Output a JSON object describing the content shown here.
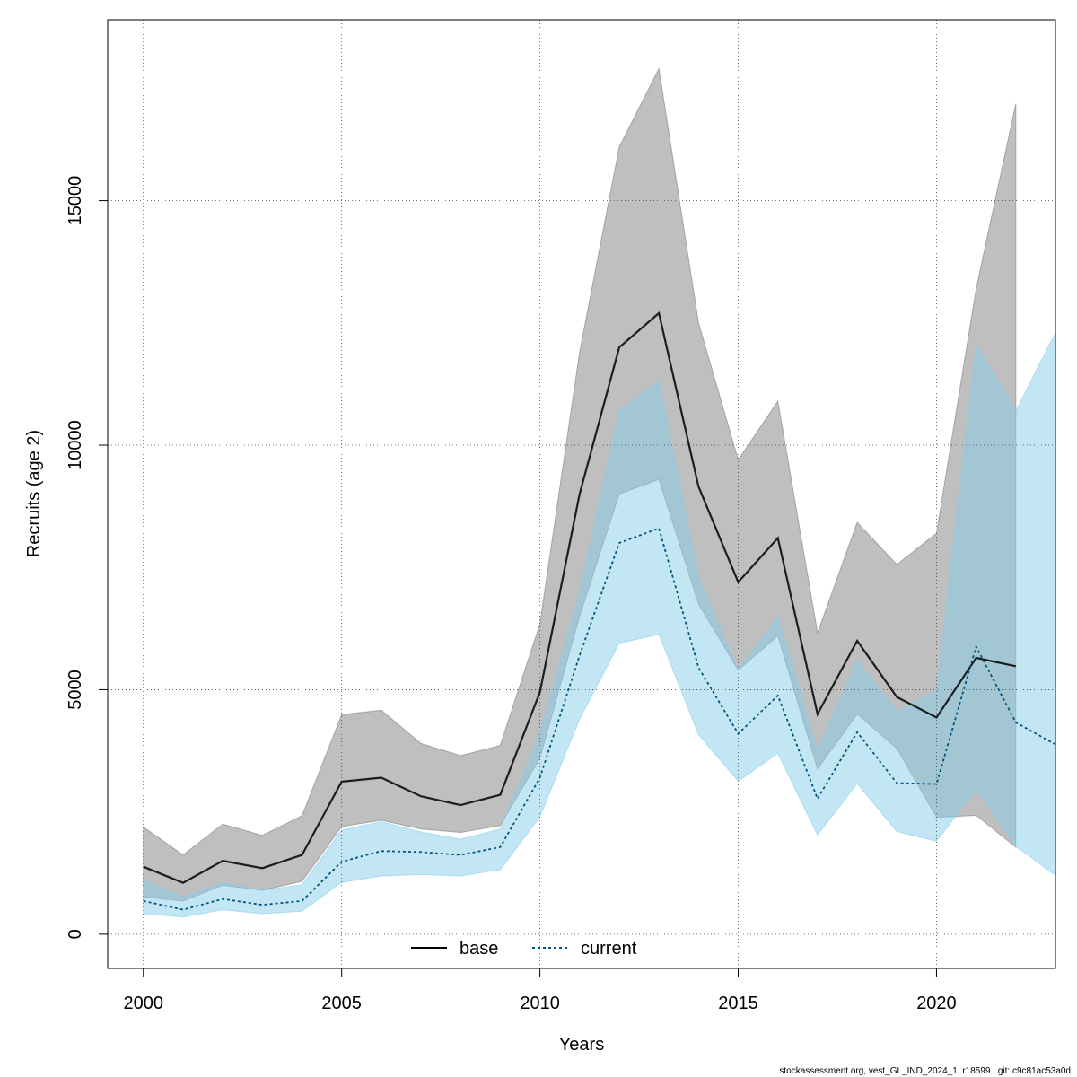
{
  "chart_data": {
    "type": "line",
    "xlabel": "Years",
    "ylabel": "Recruits (age 2)",
    "xlim": [
      1999.1,
      2023
    ],
    "ylim": [
      -700,
      18700
    ],
    "x_ticks": [
      2000,
      2005,
      2010,
      2015,
      2020
    ],
    "y_ticks": [
      0,
      5000,
      10000,
      15000
    ],
    "grid": true,
    "legend_position": "bottom",
    "series": [
      {
        "name": "base",
        "color": "#000000",
        "band_color": "#808080",
        "line_style": "solid",
        "x": [
          2000,
          2001,
          2002,
          2003,
          2004,
          2005,
          2006,
          2007,
          2008,
          2009,
          2010,
          2011,
          2012,
          2013,
          2014,
          2015,
          2016,
          2017,
          2018,
          2019,
          2020,
          2021,
          2022
        ],
        "values": [
          1380,
          1050,
          1500,
          1350,
          1620,
          3120,
          3200,
          2820,
          2640,
          2850,
          4950,
          9000,
          12000,
          12700,
          9150,
          7200,
          8100,
          4500,
          6000,
          4850,
          4430,
          5650,
          5480
        ],
        "lower": [
          760,
          680,
          1000,
          900,
          1080,
          2200,
          2330,
          2150,
          2080,
          2220,
          3600,
          6500,
          9000,
          9300,
          6750,
          5400,
          6100,
          3380,
          4500,
          3800,
          2390,
          2430,
          1780
        ],
        "upper": [
          2190,
          1620,
          2250,
          2020,
          2420,
          4490,
          4580,
          3900,
          3650,
          3860,
          6350,
          11900,
          16100,
          17700,
          12500,
          9700,
          10900,
          6160,
          8420,
          7560,
          8200,
          13200,
          16980
        ]
      },
      {
        "name": "current",
        "color": "#00567d",
        "band_color": "#87ceeb",
        "line_style": "dotted",
        "x": [
          2000,
          2001,
          2002,
          2003,
          2004,
          2005,
          2006,
          2007,
          2008,
          2009,
          2010,
          2011,
          2012,
          2013,
          2014,
          2015,
          2016,
          2017,
          2018,
          2019,
          2020,
          2021,
          2022,
          2023
        ],
        "values": [
          680,
          500,
          720,
          600,
          680,
          1480,
          1700,
          1680,
          1620,
          1780,
          3200,
          5700,
          8000,
          8300,
          5450,
          4100,
          4880,
          2770,
          4130,
          3090,
          3070,
          5880,
          4330,
          3880
        ],
        "lower": [
          420,
          350,
          500,
          420,
          470,
          1060,
          1190,
          1220,
          1190,
          1320,
          2400,
          4400,
          5950,
          6130,
          4080,
          3130,
          3700,
          2030,
          3080,
          2100,
          1900,
          2960,
          1800,
          1200
        ],
        "upper": [
          1100,
          760,
          1060,
          900,
          1010,
          2130,
          2300,
          2090,
          1940,
          2150,
          4100,
          7000,
          10700,
          11300,
          7300,
          5400,
          6500,
          3750,
          5600,
          4550,
          4990,
          12050,
          10700,
          12300
        ]
      }
    ]
  },
  "legend": {
    "base_label": "base",
    "current_label": "current"
  },
  "footer_text": "stockassessment.org, vest_GL_IND_2024_1, r18599 , git: c9c81ac53a0d"
}
